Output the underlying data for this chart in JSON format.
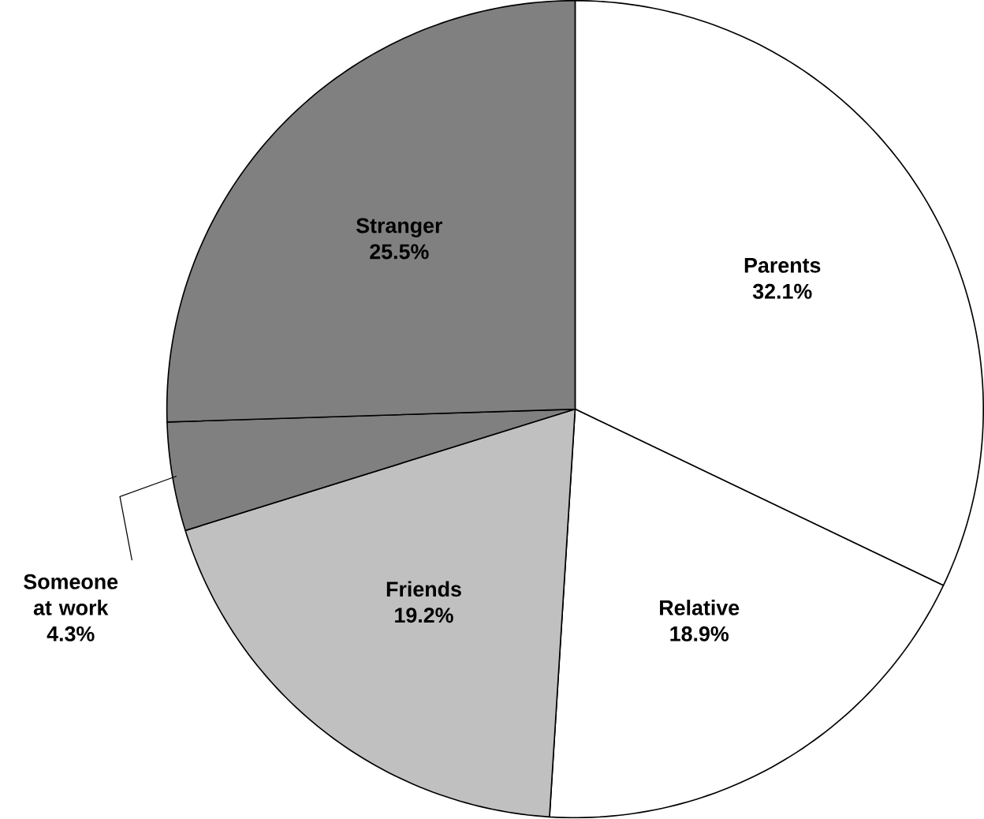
{
  "chart_data": {
    "type": "pie",
    "categories": [
      "Parents",
      "Relative",
      "Friends",
      "Someone at work",
      "Stranger"
    ],
    "values": [
      32.1,
      18.9,
      19.2,
      4.3,
      25.5
    ],
    "value_labels": [
      "32.1%",
      "18.9%",
      "19.2%",
      "4.3%",
      "25.5%"
    ],
    "colors": [
      "#ffffff",
      "#ffffff",
      "#c0c0c0",
      "#808080",
      "#808080"
    ]
  }
}
